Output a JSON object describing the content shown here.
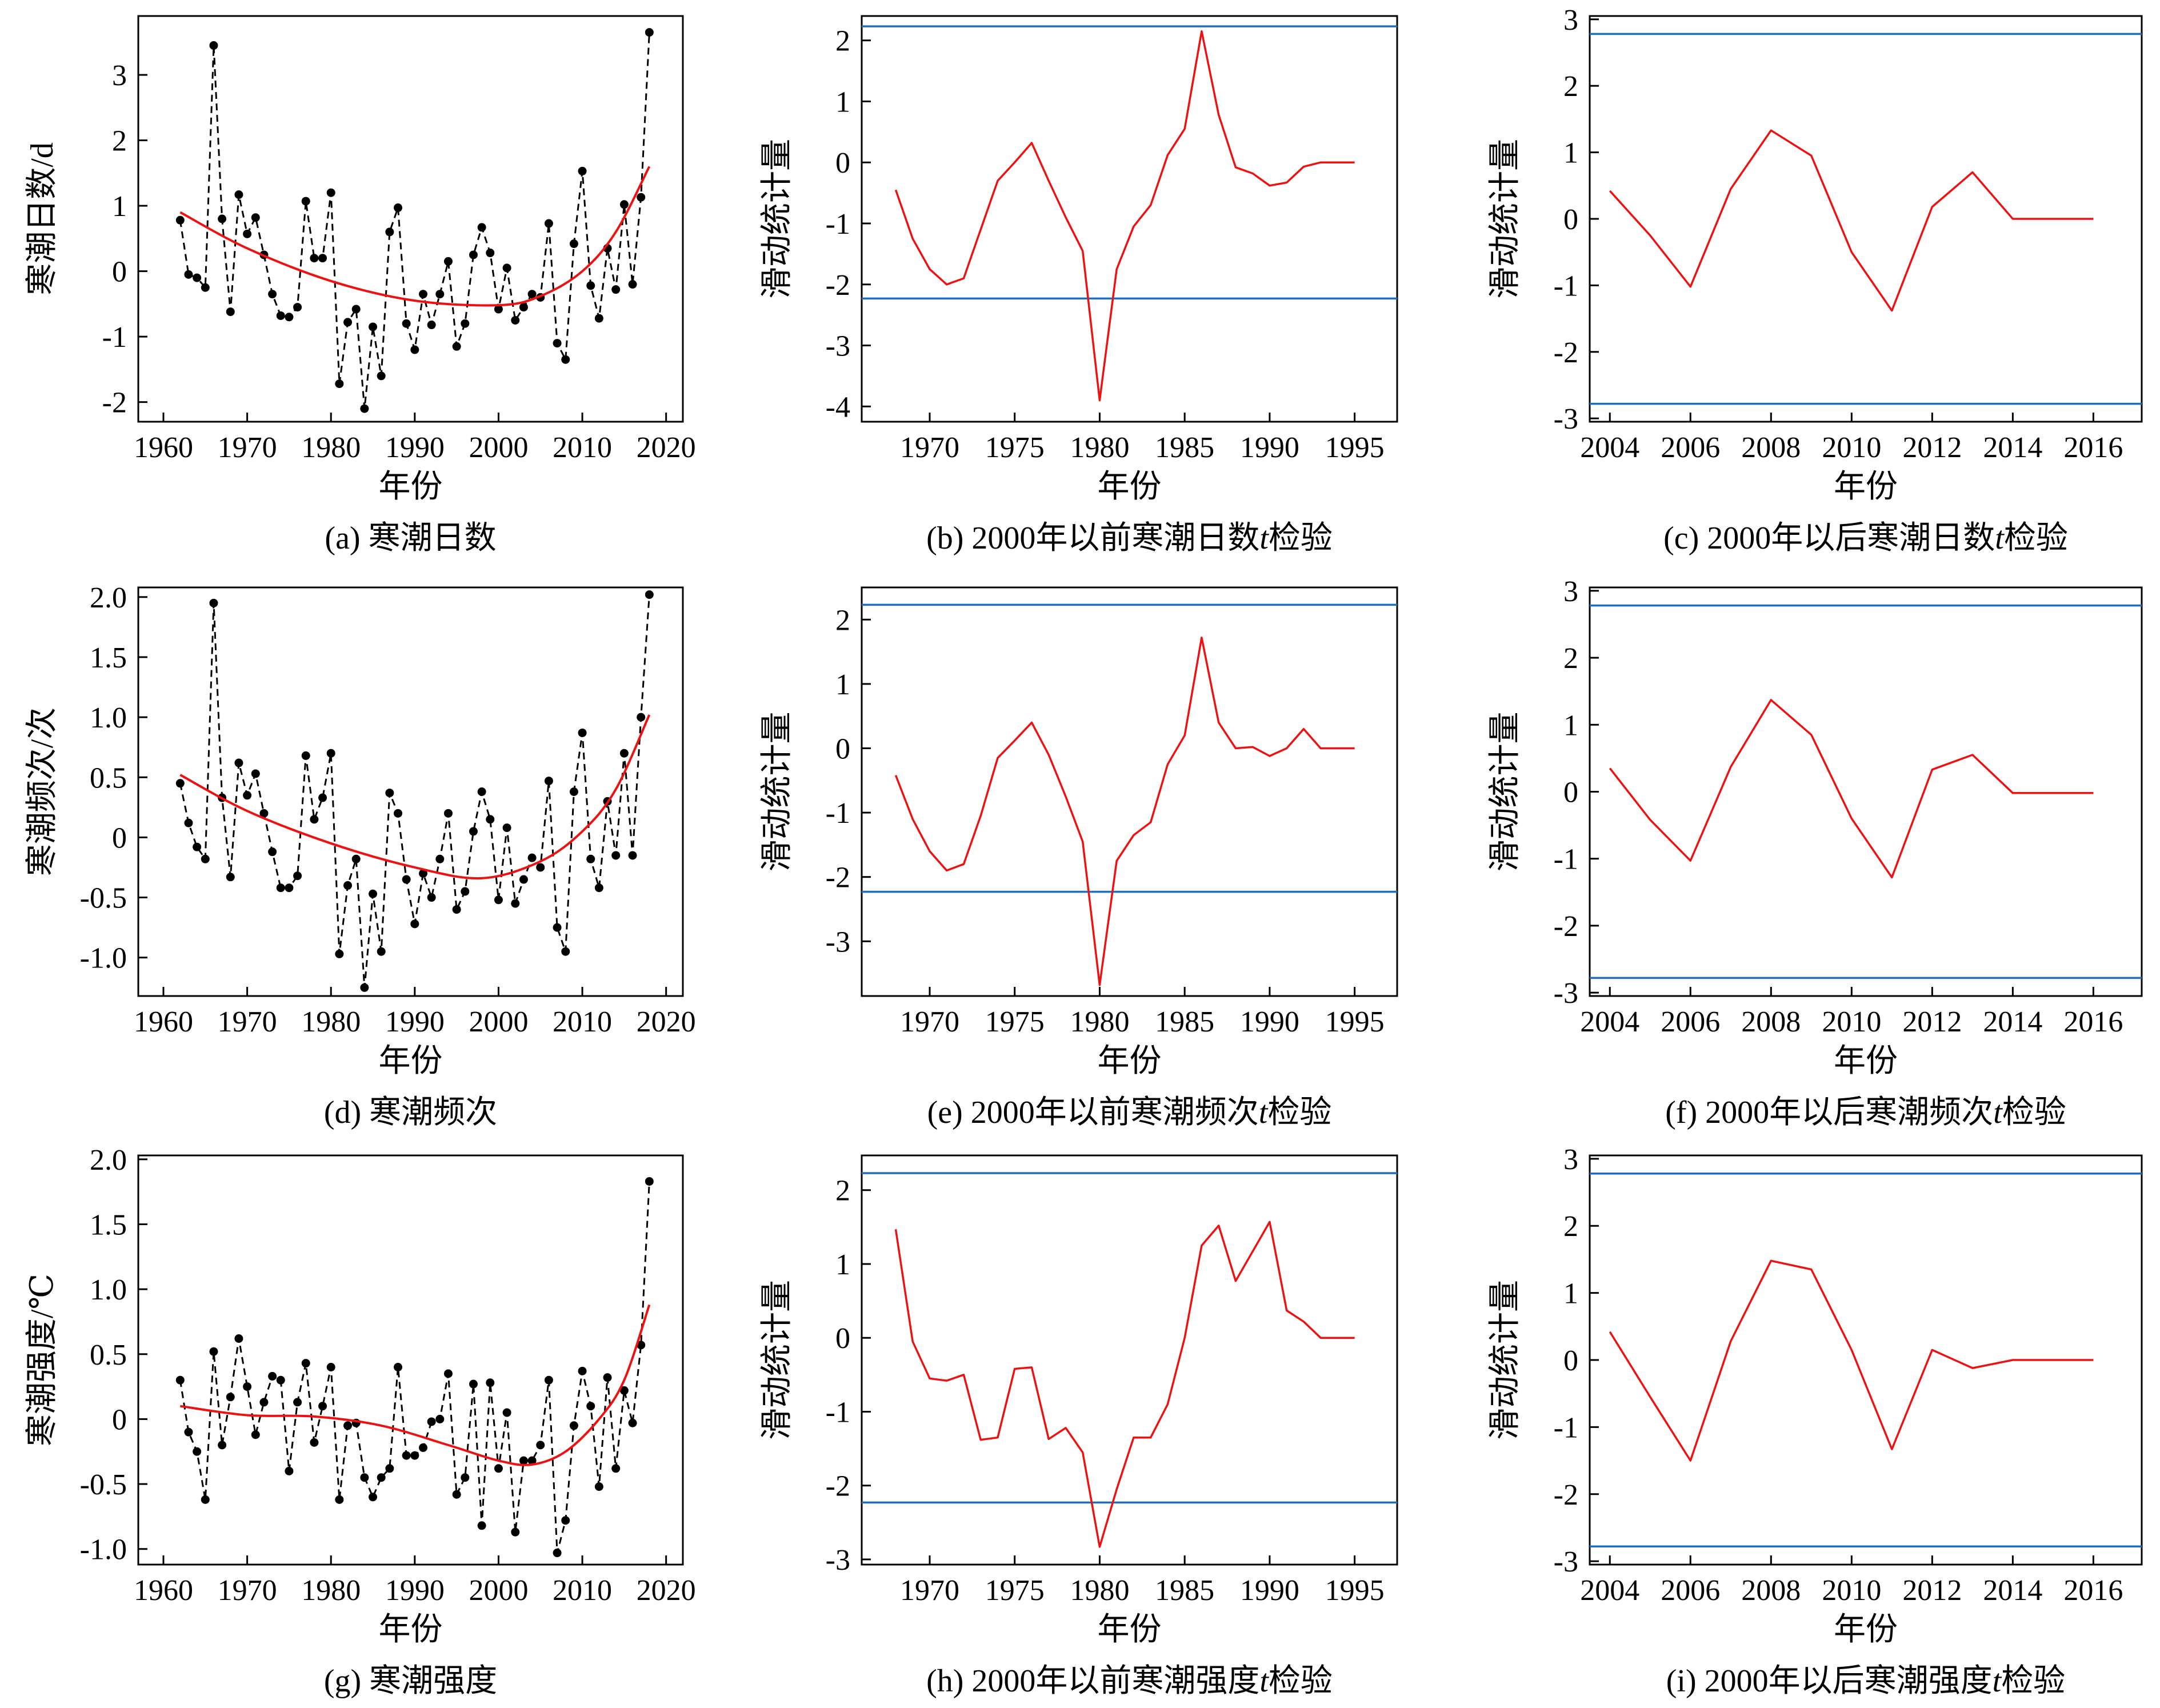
{
  "figure": {
    "xlabel_common": "年份",
    "colors": {
      "data_line": "#000000",
      "fit_curve": "#ee1111",
      "stat_line": "#ee1111",
      "threshold": "#1f6fbf"
    }
  },
  "chart_data": [
    {
      "id": "a",
      "type": "line",
      "caption": "(a) 寒潮日数",
      "xlabel": "年份",
      "ylabel": "寒潮日数/d",
      "xlim": [
        1957,
        2022
      ],
      "ylim": [
        -2.3,
        3.9
      ],
      "xticks": [
        1960,
        1970,
        1980,
        1990,
        2000,
        2010,
        2020
      ],
      "yticks": [
        -2,
        -1,
        0,
        1,
        2,
        3
      ],
      "ytick_labels": [
        "-2",
        "-1",
        "0",
        "1",
        "2",
        "3"
      ],
      "x_start": 1962,
      "series": [
        {
          "kind": "observed",
          "style": "dashed-black-with-dots",
          "values": [
            0.78,
            -0.05,
            -0.1,
            -0.25,
            3.45,
            0.8,
            -0.62,
            1.17,
            0.57,
            0.82,
            0.25,
            -0.35,
            -0.68,
            -0.7,
            -0.55,
            1.07,
            0.2,
            0.2,
            1.2,
            -1.72,
            -0.78,
            -0.58,
            -2.1,
            -0.85,
            -1.6,
            0.6,
            0.97,
            -0.8,
            -1.2,
            -0.35,
            -0.82,
            -0.35,
            0.15,
            -1.15,
            -0.8,
            0.25,
            0.67,
            0.28,
            -0.58,
            0.05,
            -0.75,
            -0.55,
            -0.35,
            -0.4,
            0.73,
            -1.1,
            -1.35,
            0.42,
            1.53,
            -0.22,
            -0.72,
            0.35,
            -0.28,
            1.02,
            -0.2,
            1.13,
            3.65
          ]
        },
        {
          "kind": "fit",
          "style": "solid-red",
          "x": [
            1962,
            1970,
            1980,
            1990,
            2000,
            2005,
            2010,
            2014,
            2018
          ],
          "values": [
            0.9,
            0.35,
            -0.15,
            -0.45,
            -0.52,
            -0.38,
            0.0,
            0.6,
            1.6
          ]
        }
      ]
    },
    {
      "id": "b",
      "type": "line",
      "caption": "(b) 2000年以前寒潮日数t检验",
      "caption_parts": [
        "(b) 2000年以前寒潮日数",
        "t",
        "检验"
      ],
      "xlabel": "年份",
      "ylabel": "滑动统计量",
      "xlim": [
        1966,
        1997.5
      ],
      "ylim": [
        -4.25,
        2.4
      ],
      "xticks": [
        1970,
        1975,
        1980,
        1985,
        1990,
        1995
      ],
      "yticks": [
        -4,
        -3,
        -2,
        -1,
        0,
        1,
        2
      ],
      "ytick_labels": [
        "-4",
        "-3",
        "-2",
        "-1",
        "0",
        "1",
        "2"
      ],
      "x_start": 1968,
      "thresholds": [
        2.23,
        -2.23
      ],
      "series": [
        {
          "kind": "statistic",
          "style": "solid-red",
          "values": [
            -0.45,
            -1.25,
            -1.75,
            -2.0,
            -1.9,
            -1.1,
            -0.3,
            0.0,
            0.32,
            -0.3,
            -0.9,
            -1.45,
            -3.9,
            -1.75,
            -1.05,
            -0.7,
            0.12,
            0.55,
            2.15,
            0.78,
            -0.08,
            -0.18,
            -0.38,
            -0.33,
            -0.07,
            0.0,
            0.0,
            0.0
          ]
        }
      ]
    },
    {
      "id": "c",
      "type": "line",
      "caption": "(c) 2000年以后寒潮日数t检验",
      "caption_parts": [
        "(c) 2000年以后寒潮日数",
        "t",
        "检验"
      ],
      "xlabel": "年份",
      "ylabel": "滑动统计量",
      "xlim": [
        2003.5,
        2017.2
      ],
      "ylim": [
        -3.05,
        3.05
      ],
      "xticks": [
        2004,
        2006,
        2008,
        2010,
        2012,
        2014,
        2016
      ],
      "yticks": [
        -3,
        -2,
        -1,
        0,
        1,
        2,
        3
      ],
      "ytick_labels": [
        "-3",
        "-2",
        "-1",
        "0",
        "1",
        "2",
        "3"
      ],
      "x_start": 2004,
      "thresholds": [
        2.78,
        -2.78
      ],
      "series": [
        {
          "kind": "statistic",
          "style": "solid-red",
          "values": [
            0.42,
            -0.25,
            -1.02,
            0.45,
            1.33,
            0.95,
            -0.5,
            -1.38,
            0.18,
            0.7,
            0.0,
            0.0,
            0.0
          ]
        }
      ]
    },
    {
      "id": "d",
      "type": "line",
      "caption": "(d) 寒潮频次",
      "xlabel": "年份",
      "ylabel": "寒潮频次/次",
      "xlim": [
        1957,
        2022
      ],
      "ylim": [
        -1.32,
        2.08
      ],
      "xticks": [
        1960,
        1970,
        1980,
        1990,
        2000,
        2010,
        2020
      ],
      "yticks": [
        -1.0,
        -0.5,
        0,
        0.5,
        1.0,
        1.5,
        2.0
      ],
      "ytick_labels": [
        "-1.0",
        "-0.5",
        "0",
        "0.5",
        "1.0",
        "1.5",
        "2.0"
      ],
      "x_start": 1962,
      "series": [
        {
          "kind": "observed",
          "style": "dashed-black-with-dots",
          "values": [
            0.45,
            0.12,
            -0.08,
            -0.18,
            1.95,
            0.33,
            -0.33,
            0.62,
            0.35,
            0.53,
            0.2,
            -0.12,
            -0.42,
            -0.42,
            -0.32,
            0.68,
            0.15,
            0.33,
            0.7,
            -0.97,
            -0.4,
            -0.18,
            -1.25,
            -0.47,
            -0.95,
            0.37,
            0.2,
            -0.35,
            -0.72,
            -0.3,
            -0.5,
            -0.18,
            0.2,
            -0.6,
            -0.45,
            0.05,
            0.38,
            0.15,
            -0.52,
            0.08,
            -0.55,
            -0.35,
            -0.17,
            -0.25,
            0.47,
            -0.75,
            -0.95,
            0.38,
            0.87,
            -0.18,
            -0.42,
            0.3,
            -0.15,
            0.7,
            -0.15,
            1.0,
            2.02
          ]
        },
        {
          "kind": "fit",
          "style": "solid-red",
          "x": [
            1962,
            1970,
            1980,
            1990,
            1998,
            2005,
            2010,
            2014,
            2018
          ],
          "values": [
            0.52,
            0.22,
            -0.05,
            -0.25,
            -0.34,
            -0.2,
            0.05,
            0.4,
            1.02
          ]
        }
      ]
    },
    {
      "id": "e",
      "type": "line",
      "caption": "(e) 2000年以前寒潮频次t检验",
      "caption_parts": [
        "(e) 2000年以前寒潮频次",
        "t",
        "检验"
      ],
      "xlabel": "年份",
      "ylabel": "滑动统计量",
      "xlim": [
        1966,
        1997.5
      ],
      "ylim": [
        -3.85,
        2.5
      ],
      "xticks": [
        1970,
        1975,
        1980,
        1985,
        1990,
        1995
      ],
      "yticks": [
        -3,
        -2,
        -1,
        0,
        1,
        2
      ],
      "ytick_labels": [
        "-3",
        "-2",
        "-1",
        "0",
        "1",
        "2"
      ],
      "x_start": 1968,
      "thresholds": [
        2.23,
        -2.23
      ],
      "series": [
        {
          "kind": "statistic",
          "style": "solid-red",
          "values": [
            -0.42,
            -1.1,
            -1.6,
            -1.9,
            -1.8,
            -1.05,
            -0.15,
            0.12,
            0.4,
            -0.1,
            -0.75,
            -1.45,
            -3.68,
            -1.75,
            -1.35,
            -1.15,
            -0.25,
            0.2,
            1.72,
            0.4,
            0.0,
            0.02,
            -0.12,
            0.0,
            0.3,
            0.0,
            0.0,
            0.0
          ]
        }
      ]
    },
    {
      "id": "f",
      "type": "line",
      "caption": "(f) 2000年以后寒潮频次t检验",
      "caption_parts": [
        "(f) 2000年以后寒潮频次",
        "t",
        "检验"
      ],
      "xlabel": "年份",
      "ylabel": "滑动统计量",
      "xlim": [
        2003.5,
        2017.2
      ],
      "ylim": [
        -3.05,
        3.05
      ],
      "xticks": [
        2004,
        2006,
        2008,
        2010,
        2012,
        2014,
        2016
      ],
      "yticks": [
        -3,
        -2,
        -1,
        0,
        1,
        2,
        3
      ],
      "ytick_labels": [
        "-3",
        "-2",
        "-1",
        "0",
        "1",
        "2",
        "3"
      ],
      "x_start": 2004,
      "thresholds": [
        2.78,
        -2.78
      ],
      "series": [
        {
          "kind": "statistic",
          "style": "solid-red",
          "values": [
            0.35,
            -0.42,
            -1.03,
            0.37,
            1.37,
            0.85,
            -0.4,
            -1.28,
            0.33,
            0.55,
            -0.02,
            -0.02,
            -0.02
          ]
        }
      ]
    },
    {
      "id": "g",
      "type": "line",
      "caption": "(g) 寒潮强度",
      "xlabel": "年份",
      "ylabel": "寒潮强度/℃",
      "xlim": [
        1957,
        2022
      ],
      "ylim": [
        -1.12,
        2.03
      ],
      "xticks": [
        1960,
        1970,
        1980,
        1990,
        2000,
        2010,
        2020
      ],
      "yticks": [
        -1.0,
        -0.5,
        0,
        0.5,
        1.0,
        1.5,
        2.0
      ],
      "ytick_labels": [
        "-1.0",
        "-0.5",
        "0",
        "0.5",
        "1.0",
        "1.5",
        "2.0"
      ],
      "x_start": 1962,
      "series": [
        {
          "kind": "observed",
          "style": "dashed-black-with-dots",
          "values": [
            0.3,
            -0.1,
            -0.25,
            -0.62,
            0.52,
            -0.2,
            0.17,
            0.62,
            0.25,
            -0.12,
            0.13,
            0.33,
            0.3,
            -0.4,
            0.13,
            0.43,
            -0.18,
            0.1,
            0.4,
            -0.62,
            -0.05,
            -0.03,
            -0.45,
            -0.6,
            -0.45,
            -0.38,
            0.4,
            -0.28,
            -0.28,
            -0.22,
            -0.02,
            0.0,
            0.35,
            -0.58,
            -0.45,
            0.27,
            -0.82,
            0.28,
            -0.38,
            0.05,
            -0.87,
            -0.32,
            -0.32,
            -0.2,
            0.3,
            -1.03,
            -0.78,
            -0.05,
            0.37,
            0.1,
            -0.52,
            0.32,
            -0.38,
            0.22,
            -0.03,
            0.57,
            1.83
          ]
        },
        {
          "kind": "fit",
          "style": "solid-red",
          "x": [
            1962,
            1970,
            1978,
            1986,
            1994,
            2000,
            2004,
            2008,
            2012,
            2015,
            2018
          ],
          "values": [
            0.1,
            0.03,
            0.02,
            -0.05,
            -0.2,
            -0.32,
            -0.35,
            -0.25,
            0.0,
            0.3,
            0.88
          ]
        }
      ]
    },
    {
      "id": "h",
      "type": "line",
      "caption": "(h) 2000年以前寒潮强度t检验",
      "caption_parts": [
        "(h) 2000年以前寒潮强度",
        "t",
        "检验"
      ],
      "xlabel": "年份",
      "ylabel": "滑动统计量",
      "xlim": [
        1966,
        1997.5
      ],
      "ylim": [
        -3.07,
        2.47
      ],
      "xticks": [
        1970,
        1975,
        1980,
        1985,
        1990,
        1995
      ],
      "yticks": [
        -3,
        -2,
        -1,
        0,
        1,
        2
      ],
      "ytick_labels": [
        "-3",
        "-2",
        "-1",
        "0",
        "1",
        "2"
      ],
      "x_start": 1968,
      "thresholds": [
        2.23,
        -2.23
      ],
      "series": [
        {
          "kind": "statistic",
          "style": "solid-red",
          "values": [
            1.47,
            -0.05,
            -0.55,
            -0.58,
            -0.5,
            -1.38,
            -1.35,
            -0.42,
            -0.4,
            -1.37,
            -1.22,
            -1.55,
            -2.83,
            -2.05,
            -1.35,
            -1.35,
            -0.9,
            0.0,
            1.25,
            1.52,
            0.77,
            1.17,
            1.57,
            0.37,
            0.22,
            0.0,
            0.0,
            0.0
          ]
        }
      ]
    },
    {
      "id": "i",
      "type": "line",
      "caption": "(i) 2000年以后寒潮强度t检验",
      "caption_parts": [
        "(i) 2000年以后寒潮强度",
        "t",
        "检验"
      ],
      "xlabel": "年份",
      "ylabel": "滑动统计量",
      "xlim": [
        2003.5,
        2017.2
      ],
      "ylim": [
        -3.05,
        3.05
      ],
      "xticks": [
        2004,
        2006,
        2008,
        2010,
        2012,
        2014,
        2016
      ],
      "yticks": [
        -3,
        -2,
        -1,
        0,
        1,
        2,
        3
      ],
      "ytick_labels": [
        "-3",
        "-2",
        "-1",
        "0",
        "1",
        "2",
        "3"
      ],
      "x_start": 2004,
      "thresholds": [
        2.78,
        -2.78
      ],
      "series": [
        {
          "kind": "statistic",
          "style": "solid-red",
          "values": [
            0.42,
            -0.55,
            -1.5,
            0.28,
            1.48,
            1.35,
            0.15,
            -1.33,
            0.15,
            -0.12,
            0.0,
            0.0,
            0.0
          ]
        }
      ]
    }
  ]
}
